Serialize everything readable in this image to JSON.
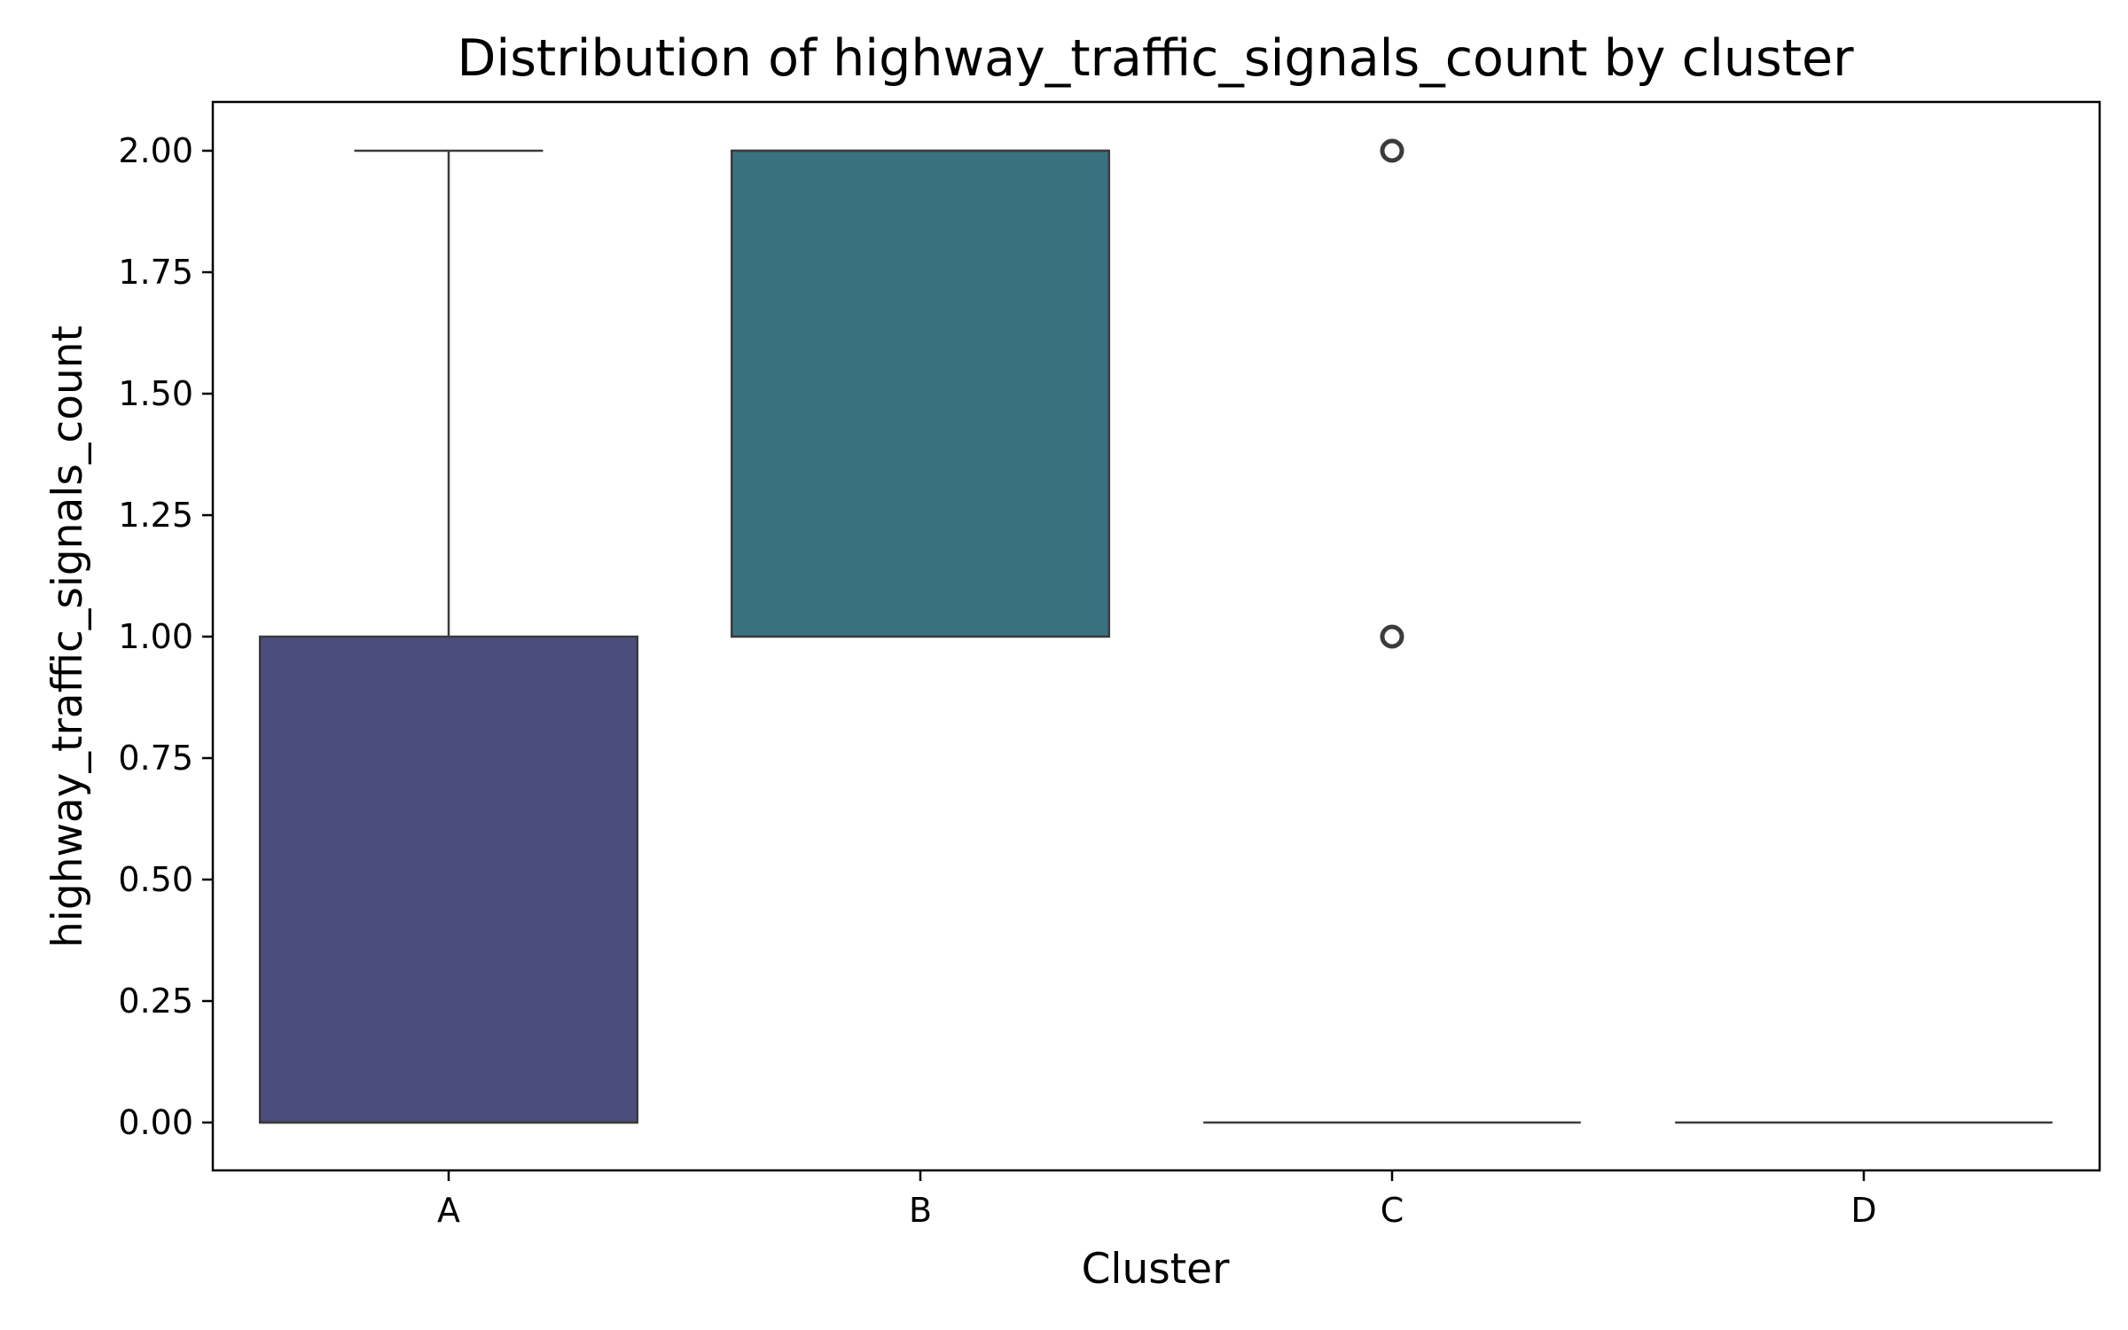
{
  "chart_data": {
    "type": "boxplot",
    "title": "Distribution of highway_traffic_signals_count by cluster",
    "xlabel": "Cluster",
    "ylabel": "highway_traffic_signals_count",
    "ylim": [
      -0.1,
      2.1
    ],
    "yticks": [
      0.0,
      0.25,
      0.5,
      0.75,
      1.0,
      1.25,
      1.5,
      1.75,
      2.0
    ],
    "ytick_labels": [
      "0.00",
      "0.25",
      "0.50",
      "0.75",
      "1.00",
      "1.25",
      "1.50",
      "1.75",
      "2.00"
    ],
    "grid": false,
    "categories": [
      "A",
      "B",
      "C",
      "D"
    ],
    "boxes": [
      {
        "category": "A",
        "color": "#4b4d7c",
        "q1": 0.0,
        "median": 0.0,
        "q3": 1.0,
        "whisker_low": 0.0,
        "whisker_high": 2.0,
        "outliers": []
      },
      {
        "category": "B",
        "color": "#387280",
        "q1": 1.0,
        "median": 2.0,
        "q3": 2.0,
        "whisker_low": 1.0,
        "whisker_high": 2.0,
        "outliers": []
      },
      {
        "category": "C",
        "color": "#3aa283",
        "q1": 0.0,
        "median": 0.0,
        "q3": 0.0,
        "whisker_low": 0.0,
        "whisker_high": 0.0,
        "outliers": [
          1.0,
          2.0
        ]
      },
      {
        "category": "D",
        "color": "#78c25d",
        "q1": 0.0,
        "median": 0.0,
        "q3": 0.0,
        "whisker_low": 0.0,
        "whisker_high": 0.0,
        "outliers": []
      }
    ]
  }
}
